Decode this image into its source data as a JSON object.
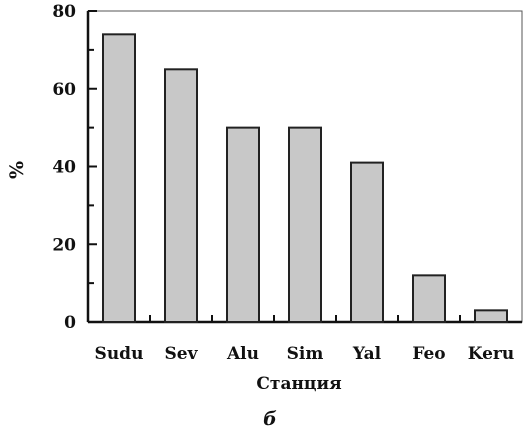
{
  "chart_data": {
    "type": "bar",
    "categories": [
      "Sudu",
      "Sev",
      "Alu",
      "Sim",
      "Yal",
      "Feo",
      "Keru"
    ],
    "values": [
      74,
      65,
      50,
      50,
      41,
      12,
      3
    ],
    "title": "",
    "xlabel": "Станция",
    "ylabel": "%",
    "ylim": [
      0,
      80
    ],
    "yticks": [
      "0",
      "20",
      "40",
      "60",
      "80"
    ],
    "grid": false,
    "bar_color": "#c8c8c8",
    "edge_color": "#222222",
    "panel_label": "б"
  }
}
